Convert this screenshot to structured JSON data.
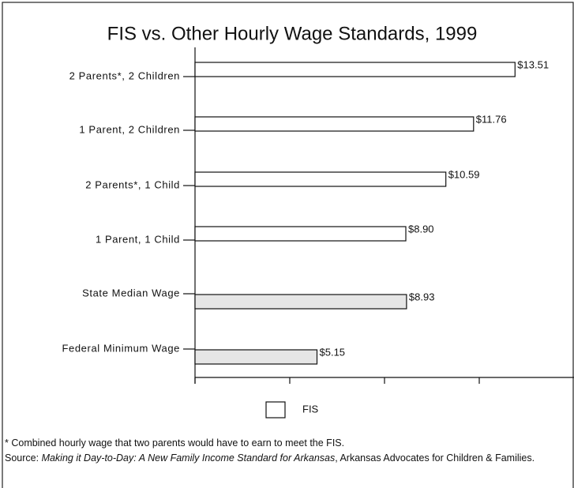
{
  "chart_data": {
    "type": "barh",
    "title": "FIS vs. Other Hourly Wage Standards, 1999",
    "categories": [
      "2 Parents*, 2 Children",
      "1 Parent, 2 Children",
      "2 Parents*, 1 Child",
      "1 Parent, 1 Child",
      "State Median Wage",
      "Federal Minimum Wage"
    ],
    "series": [
      {
        "name": "FIS",
        "color": "#ffffff",
        "values": [
          13.51,
          11.76,
          10.59,
          8.9,
          8.93,
          5.15
        ],
        "value_labels": [
          "$13.51",
          "$11.76",
          "$10.59",
          "$8.90",
          "$8.93",
          "$5.15"
        ]
      }
    ],
    "bar_colors": [
      "#ffffff",
      "#ffffff",
      "#ffffff",
      "#ffffff",
      "#e6e6e6",
      "#e6e6e6"
    ],
    "xlim": [
      0,
      16
    ],
    "xticks": [
      0,
      4,
      8,
      12
    ],
    "grid": false,
    "legend": "bottom",
    "footnote": "* Combined hourly wage that two parents would have to earn to meet the FIS.",
    "source": {
      "prefix": "Source: ",
      "title": "Making it Day-to-Day: A New Family Income Standard for Arkansas",
      "suffix": ", Arkansas Advocates for Children & Families."
    }
  }
}
